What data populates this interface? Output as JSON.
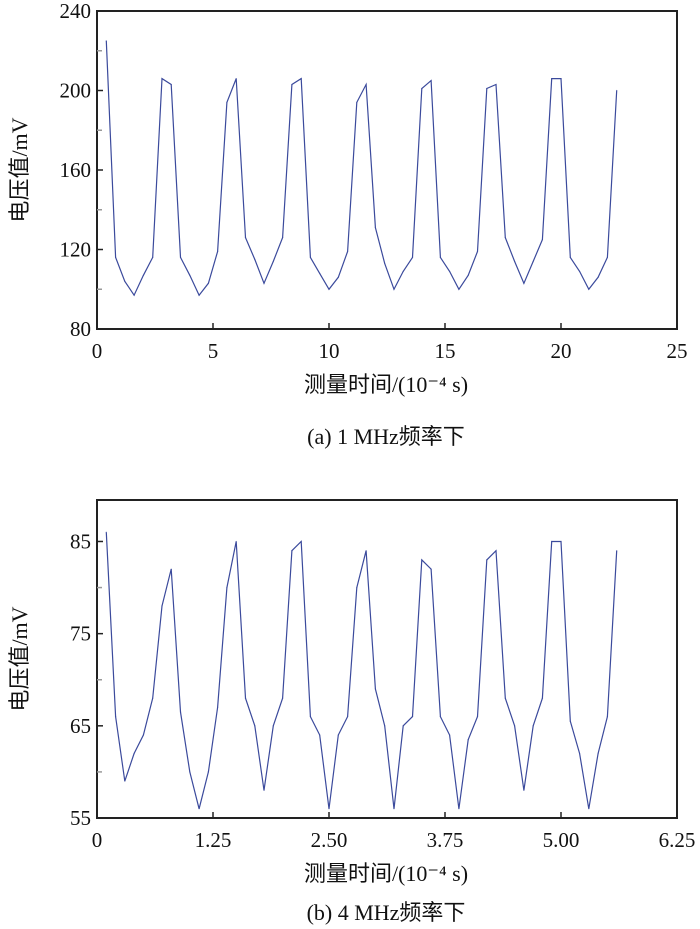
{
  "chart_data": [
    {
      "type": "line",
      "caption": "(a) 1 MHz频率下",
      "xlabel": "测量时间/(10⁻⁴ s)",
      "ylabel": "电压值/mV",
      "xlim": [
        0,
        25
      ],
      "ylim": [
        80,
        240
      ],
      "xticks": [
        0,
        5,
        10,
        15,
        20,
        25
      ],
      "xtick_labels": [
        "0",
        "5",
        "10",
        "15",
        "20",
        "25"
      ],
      "yticks": [
        80,
        120,
        160,
        200,
        240
      ],
      "ytick_labels": [
        "80",
        "120",
        "160",
        "200",
        "240"
      ],
      "y_minor_step": 20,
      "grid": false,
      "line_color": "#3b4a9c",
      "series": [
        {
          "x": [
            0.4,
            0.8,
            1.2,
            1.6,
            2.0,
            2.4,
            2.8,
            3.2,
            3.6,
            4.0,
            4.4,
            4.8,
            5.2,
            5.6,
            6.0,
            6.4,
            6.8,
            7.2,
            7.6,
            8.0,
            8.4,
            8.8,
            9.2,
            9.6,
            10.0,
            10.4,
            10.8,
            11.2,
            11.6,
            12.0,
            12.4,
            12.8,
            13.2,
            13.6,
            14.0,
            14.4,
            14.8,
            15.2,
            15.6,
            16.0,
            16.4,
            16.8,
            17.2,
            17.6,
            18.0,
            18.4,
            18.8,
            19.2,
            19.6,
            20.0,
            20.4,
            20.8,
            21.2,
            21.6,
            22.0,
            22.4
          ],
          "y": [
            225,
            116,
            104,
            97,
            107,
            116,
            206,
            203,
            116,
            107,
            97,
            103,
            119,
            194,
            206,
            126,
            115,
            103,
            114,
            126,
            203,
            206,
            116,
            108,
            100,
            106,
            119,
            194,
            203,
            131,
            113,
            100,
            109,
            116,
            201,
            205,
            116,
            109,
            100,
            107,
            119,
            201,
            203,
            126,
            114,
            103,
            114,
            125,
            206,
            206,
            116,
            109,
            100,
            106,
            116,
            200
          ]
        }
      ]
    },
    {
      "type": "line",
      "caption": "(b) 4 MHz频率下",
      "xlabel": "测量时间/(10⁻⁴ s)",
      "ylabel": "电压值/mV",
      "xlim": [
        0,
        6.25
      ],
      "ylim": [
        55,
        89.5
      ],
      "xticks": [
        0,
        1.25,
        2.5,
        3.75,
        5.0,
        6.25
      ],
      "xtick_labels": [
        "0",
        "1.25",
        "2.50",
        "3.75",
        "5.00",
        "6.25"
      ],
      "yticks": [
        55,
        65,
        75,
        85
      ],
      "ytick_labels": [
        "55",
        "65",
        "75",
        "85"
      ],
      "y_minor_step": 5,
      "grid": false,
      "line_color": "#3b4a9c",
      "series": [
        {
          "x": [
            0.1,
            0.2,
            0.3,
            0.4,
            0.5,
            0.6,
            0.7,
            0.8,
            0.9,
            1.0,
            1.1,
            1.2,
            1.3,
            1.4,
            1.5,
            1.6,
            1.7,
            1.8,
            1.9,
            2.0,
            2.1,
            2.2,
            2.3,
            2.4,
            2.5,
            2.6,
            2.7,
            2.8,
            2.9,
            3.0,
            3.1,
            3.2,
            3.3,
            3.4,
            3.5,
            3.6,
            3.7,
            3.8,
            3.9,
            4.0,
            4.1,
            4.2,
            4.3,
            4.4,
            4.5,
            4.6,
            4.7,
            4.8,
            4.9,
            5.0,
            5.1,
            5.2,
            5.3,
            5.4,
            5.5,
            5.6
          ],
          "y": [
            86,
            66,
            59,
            62,
            64,
            68,
            78,
            82,
            66.5,
            60,
            56,
            60,
            67,
            80,
            85,
            68,
            65,
            58,
            65,
            68,
            84,
            85,
            66,
            64,
            56,
            64,
            66,
            80,
            84,
            69,
            65,
            56,
            65,
            66,
            83,
            82,
            66,
            64,
            56,
            63.5,
            66,
            83,
            84,
            68,
            65,
            58,
            65,
            68,
            85,
            85,
            65.5,
            62,
            56,
            62,
            66,
            84
          ]
        }
      ]
    }
  ]
}
